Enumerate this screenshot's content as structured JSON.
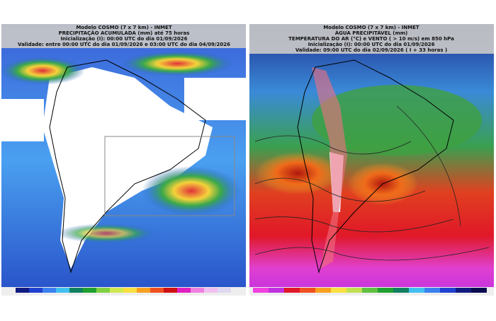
{
  "left_panel": {
    "header": [
      "Modelo COSMO (7 x 7 km) - INMET",
      "PRECIPITAÇÃO ACUMULADA (mm) até 75 horas",
      "Inicialização (I): 00:00 UTC do dia 01/09/2026",
      "Validade: entre 00:00 UTC do dia 01/09/2026 e 03:00 UTC do dia 04/09/2026"
    ]
  },
  "right_panel": {
    "header": [
      "Modelo COSMO (7 x 7 km) - INMET",
      "ÁGUA PRECIPITÁVEL (mm)",
      "TEMPERATURA DO AR (°C) e VENTO ( > 10 m/s) em 850 hPa",
      "Inicialização (I): 00:00 UTC do dia 01/09/2026",
      "Validade: 09:00 UTC do dia 02/09/2026 ( I + 33 horas )"
    ]
  }
}
